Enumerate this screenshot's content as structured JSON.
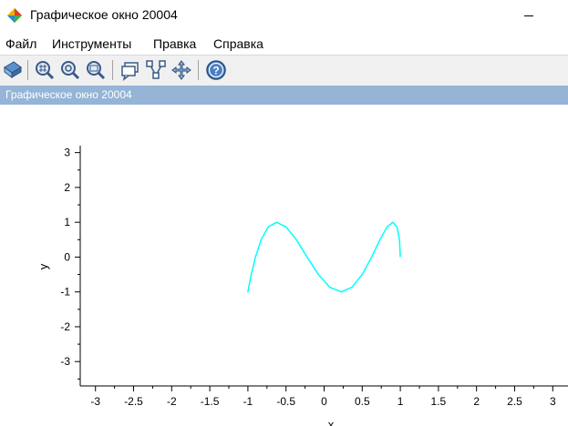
{
  "window": {
    "title": "Графическое окно 20004"
  },
  "menu": {
    "items": [
      "Файл",
      "Инструменты",
      "Правка",
      "Справка"
    ]
  },
  "toolbar": {
    "buttons": [
      "rotate-icon",
      "zoom-grid-icon",
      "zoom-in-icon",
      "zoom-area-icon",
      "datatip-icon",
      "edit-curve-icon",
      "pan-icon",
      "help-icon"
    ]
  },
  "subtitle": "Графическое окно 20004",
  "colors": {
    "curve": "#00ffff",
    "subtitle_bar": "#95b4d6",
    "axis": "#000000"
  },
  "chart_data": {
    "type": "line",
    "title": "",
    "xlabel": "x",
    "ylabel": "y",
    "xlim": [
      -3.2,
      3.2
    ],
    "ylim": [
      -3.7,
      3.2
    ],
    "xticks": [
      "-3",
      "-2.5",
      "-2",
      "-1.5",
      "-1",
      "-0.5",
      "0",
      "0.5",
      "1",
      "1.5",
      "2",
      "2.5",
      "3"
    ],
    "yticks": [
      "-3",
      "-2",
      "-1",
      "0",
      "1",
      "2",
      "3"
    ],
    "grid": false,
    "series": [
      {
        "color": "#00ffff",
        "x": [
          1,
          0.989,
          0.956,
          0.901,
          0.826,
          0.733,
          0.623,
          0.5,
          0.365,
          0.223,
          0.075,
          -0.075,
          -0.223,
          -0.365,
          -0.5,
          -0.623,
          -0.733,
          -0.826,
          -0.901,
          -0.956,
          -0.989,
          -1,
          -0.989,
          -0.956,
          -0.901,
          -0.826,
          -0.733,
          -0.623,
          -0.5,
          -0.365,
          -0.223,
          -0.075,
          0.075,
          0.223,
          0.365,
          0.5,
          0.623,
          0.733,
          0.826,
          0.901,
          0.956,
          0.989,
          1
        ],
        "y": [
          0,
          0.5,
          0.866,
          1,
          0.866,
          0.5,
          0,
          -0.5,
          -0.866,
          -1,
          -0.866,
          -0.5,
          0,
          0.5,
          0.866,
          1,
          0.866,
          0.5,
          0,
          -0.5,
          -0.866,
          -1,
          -0.866,
          -0.5,
          0,
          0.5,
          0.866,
          1,
          0.866,
          0.5,
          0,
          -0.5,
          -0.866,
          -1,
          -0.866,
          -0.5,
          0,
          0.5,
          0.866,
          1,
          0.866,
          0.5,
          0
        ]
      }
    ]
  }
}
